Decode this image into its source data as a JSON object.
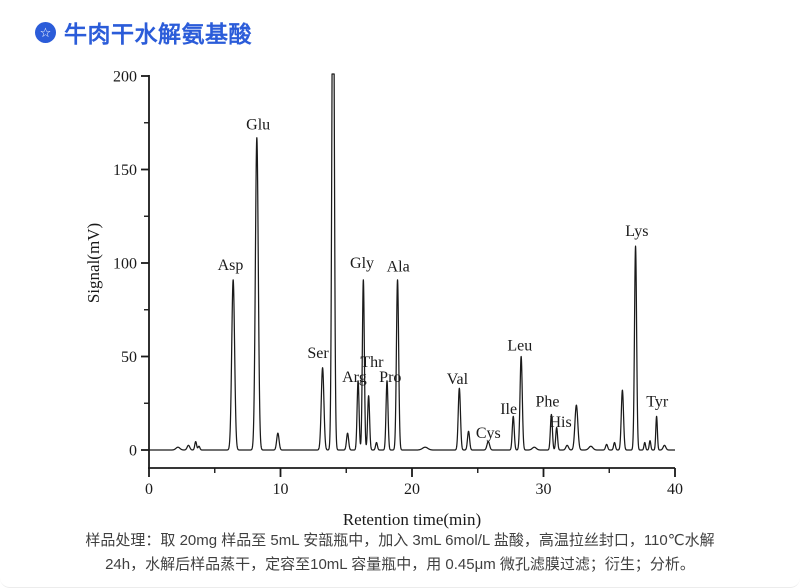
{
  "header": {
    "title": "牛肉干水解氨基酸"
  },
  "icons": {
    "header_badge": "star-in-circle-icon",
    "header_badge_glyph": "☆"
  },
  "colors": {
    "accent_blue": "#2B5CD9",
    "trace_black": "#1a1a1a",
    "caption_gray": "#3f3f3f"
  },
  "caption": {
    "line1": "样品处理：取 20mg 样品至 5mL 安瓿瓶中，加入 3mL 6mol/L 盐酸，高温拉丝封口，110℃水解",
    "line2": "24h，水解后样品蒸干，定容至10mL 容量瓶中，用 0.45μm 微孔滤膜过滤；衍生；分析。"
  },
  "chart_data": {
    "type": "line",
    "title": "",
    "xlabel": "Retention time(min)",
    "ylabel": "Signal(mV)",
    "xlim": [
      0,
      40
    ],
    "ylim": [
      0,
      200
    ],
    "x_major_ticks": [
      0,
      10,
      20,
      30,
      40
    ],
    "x_minor_ticks": [
      5,
      15,
      25,
      35
    ],
    "y_major_ticks": [
      0,
      50,
      100,
      150,
      200
    ],
    "y_minor_ticks": [
      25,
      75,
      125,
      175
    ],
    "grid": false,
    "legend": "none",
    "series_name": "Signal",
    "peaks": [
      {
        "label": "",
        "t": 2.2,
        "mv": 1.5,
        "sigma": 0.15
      },
      {
        "label": "",
        "t": 3.0,
        "mv": 2.5,
        "sigma": 0.1
      },
      {
        "label": "",
        "t": 3.55,
        "mv": 4.5,
        "sigma": 0.07
      },
      {
        "label": "",
        "t": 3.8,
        "mv": 2.0,
        "sigma": 0.07
      },
      {
        "label": "Asp",
        "t": 6.4,
        "mv": 91,
        "sigma": 0.11,
        "label_t": 6.2,
        "label_mv": 99
      },
      {
        "label": "Glu",
        "t": 8.2,
        "mv": 167,
        "sigma": 0.11,
        "label_t": 8.3,
        "label_mv": 174
      },
      {
        "label": "",
        "t": 9.8,
        "mv": 9,
        "sigma": 0.09
      },
      {
        "label": "Ser",
        "t": 13.2,
        "mv": 44,
        "sigma": 0.1,
        "label_t": 12.85,
        "label_mv": 52
      },
      {
        "label": "",
        "t": 14.0,
        "mv": 300,
        "sigma": 0.09,
        "clipped_at": 200
      },
      {
        "label": "",
        "t": 15.1,
        "mv": 9,
        "sigma": 0.08
      },
      {
        "label": "Arg",
        "t": 15.9,
        "mv": 37,
        "sigma": 0.075,
        "label_t": 15.62,
        "label_mv": 39
      },
      {
        "label": "Gly",
        "t": 16.3,
        "mv": 91,
        "sigma": 0.075,
        "label_t": 16.2,
        "label_mv": 100
      },
      {
        "label": "Thr",
        "t": 16.7,
        "mv": 29,
        "sigma": 0.075,
        "label_t": 16.95,
        "label_mv": 47
      },
      {
        "label": "",
        "t": 17.3,
        "mv": 4,
        "sigma": 0.07
      },
      {
        "label": "Pro",
        "t": 18.1,
        "mv": 37,
        "sigma": 0.075,
        "label_t": 18.35,
        "label_mv": 39
      },
      {
        "label": "Ala",
        "t": 18.9,
        "mv": 91,
        "sigma": 0.085,
        "label_t": 18.95,
        "label_mv": 98
      },
      {
        "label": "",
        "t": 21.0,
        "mv": 1.5,
        "sigma": 0.2
      },
      {
        "label": "Val",
        "t": 23.6,
        "mv": 33,
        "sigma": 0.085,
        "label_t": 23.45,
        "label_mv": 38
      },
      {
        "label": "",
        "t": 24.3,
        "mv": 10,
        "sigma": 0.08
      },
      {
        "label": "Cys",
        "t": 25.8,
        "mv": 4.5,
        "sigma": 0.1,
        "label_t": 25.8,
        "label_mv": 9
      },
      {
        "label": "Ile",
        "t": 27.7,
        "mv": 18,
        "sigma": 0.075,
        "label_t": 27.35,
        "label_mv": 22
      },
      {
        "label": "Leu",
        "t": 28.3,
        "mv": 50,
        "sigma": 0.085,
        "label_t": 28.2,
        "label_mv": 56
      },
      {
        "label": "",
        "t": 29.3,
        "mv": 1.5,
        "sigma": 0.15
      },
      {
        "label": "Phe",
        "t": 30.6,
        "mv": 19,
        "sigma": 0.075,
        "label_t": 30.3,
        "label_mv": 26
      },
      {
        "label": "His",
        "t": 31.0,
        "mv": 12,
        "sigma": 0.07,
        "label_t": 31.3,
        "label_mv": 15
      },
      {
        "label": "",
        "t": 31.8,
        "mv": 2.5,
        "sigma": 0.1
      },
      {
        "label": "",
        "t": 32.5,
        "mv": 24,
        "sigma": 0.11
      },
      {
        "label": "",
        "t": 33.6,
        "mv": 2,
        "sigma": 0.15
      },
      {
        "label": "",
        "t": 34.8,
        "mv": 3,
        "sigma": 0.08
      },
      {
        "label": "",
        "t": 35.4,
        "mv": 4,
        "sigma": 0.07
      },
      {
        "label": "",
        "t": 36.0,
        "mv": 32,
        "sigma": 0.085
      },
      {
        "label": "Lys",
        "t": 37.0,
        "mv": 109,
        "sigma": 0.08,
        "label_t": 37.1,
        "label_mv": 117
      },
      {
        "label": "",
        "t": 37.7,
        "mv": 4,
        "sigma": 0.06
      },
      {
        "label": "",
        "t": 38.1,
        "mv": 5,
        "sigma": 0.06
      },
      {
        "label": "Tyr",
        "t": 38.6,
        "mv": 18,
        "sigma": 0.06,
        "label_t": 38.65,
        "label_mv": 26
      },
      {
        "label": "",
        "t": 39.2,
        "mv": 2.5,
        "sigma": 0.1
      }
    ]
  }
}
